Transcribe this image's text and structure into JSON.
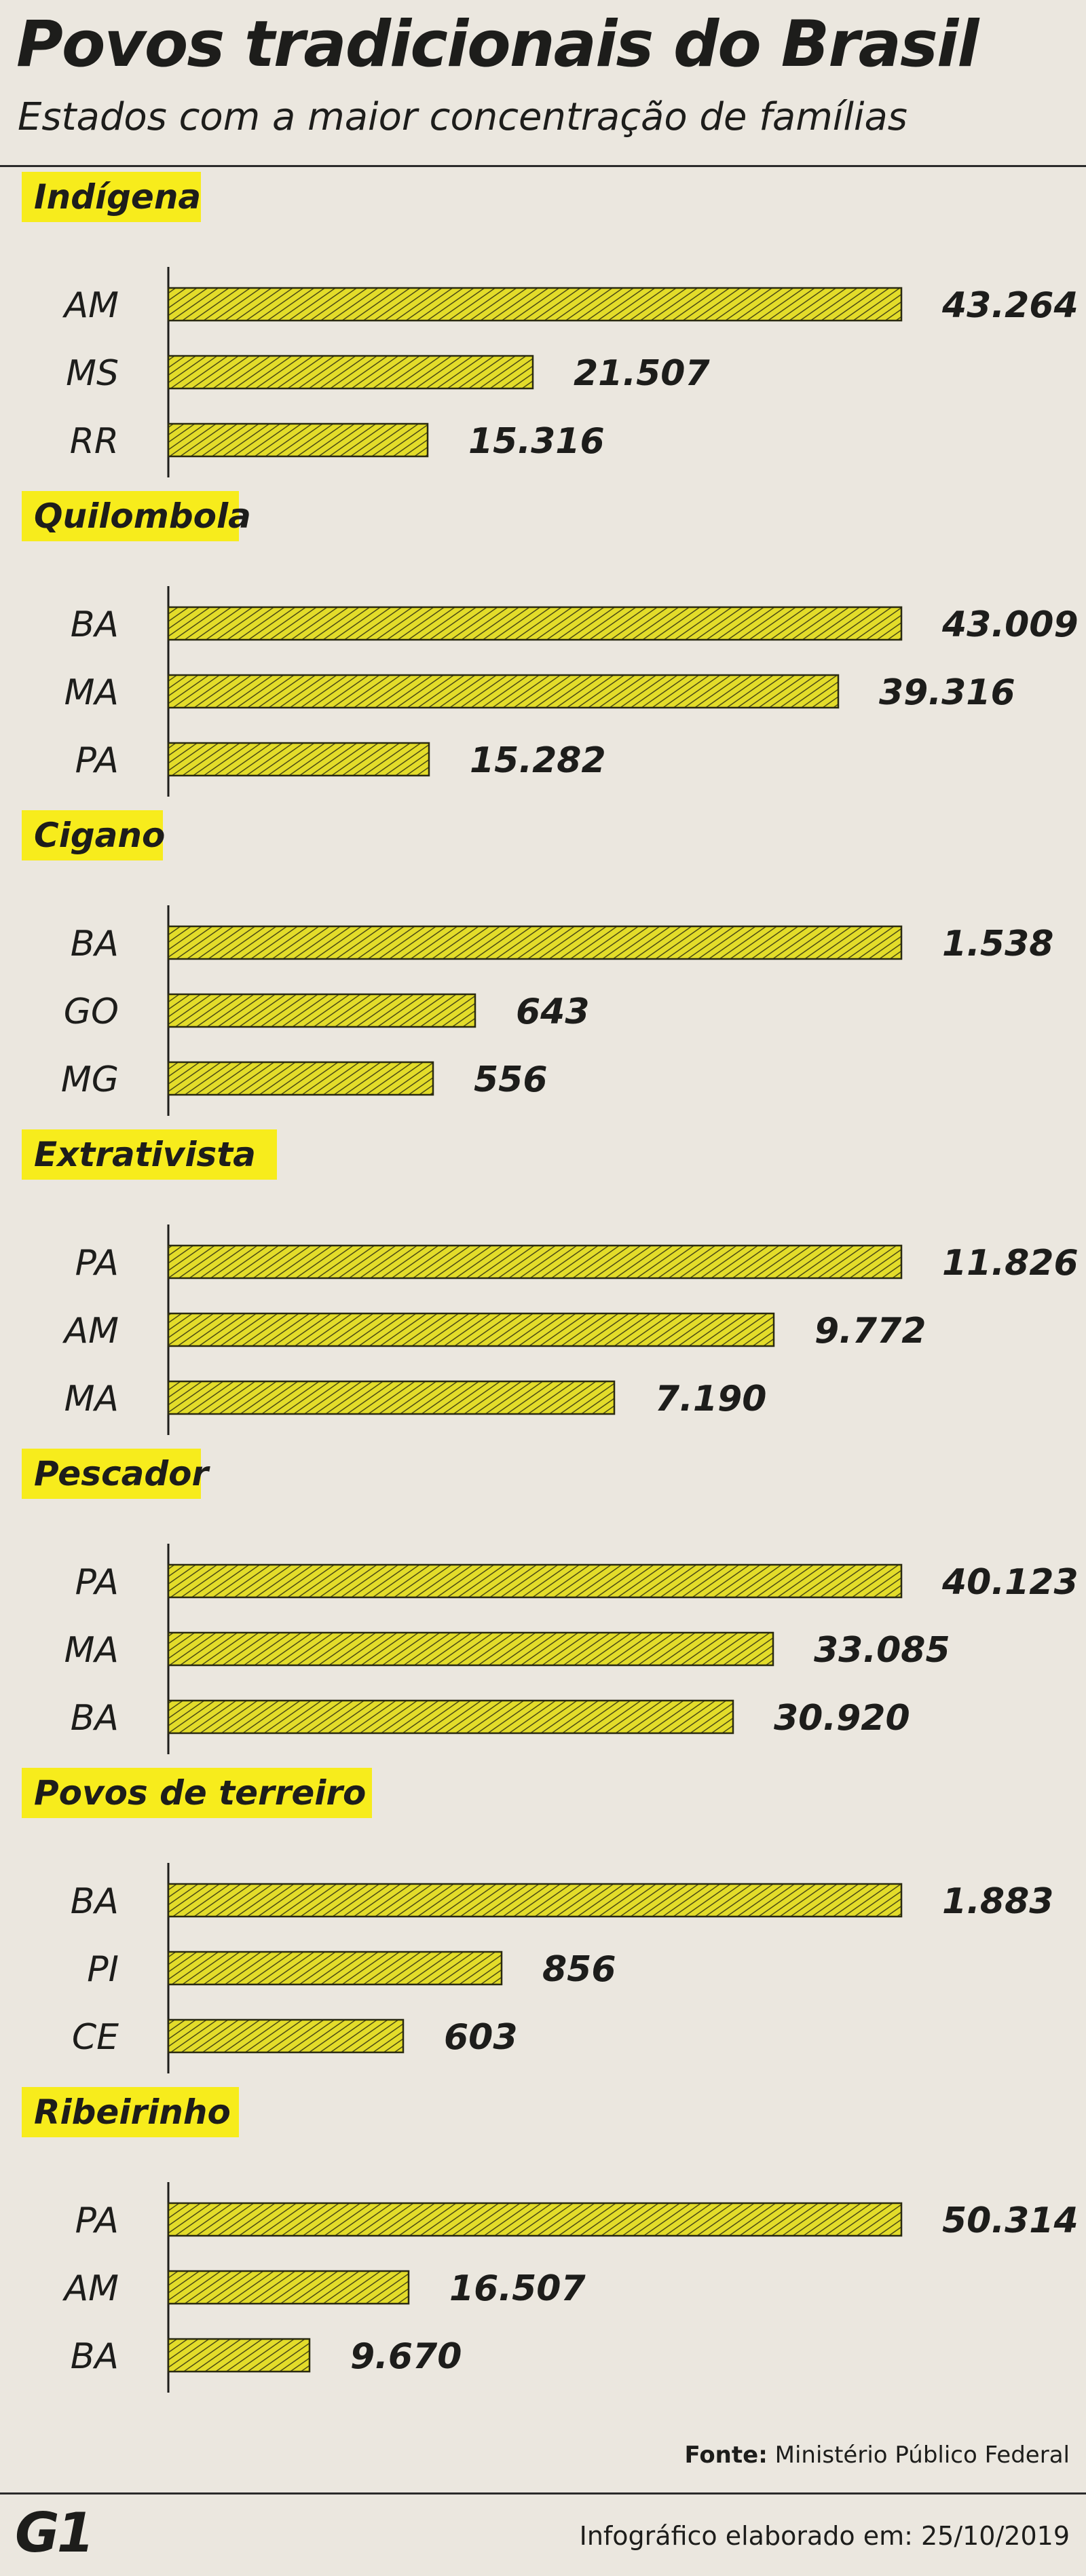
{
  "header": {
    "title": "Povos tradicionais do Brasil",
    "subtitle": "Estados com a maior concentração de famílias"
  },
  "footer": {
    "source_label": "Fonte:",
    "source_value": "Ministério Público Federal",
    "logo": "G1",
    "date_text": "Infográfico elaborado em: 25/10/2019"
  },
  "colors": {
    "background": "#ebe7df",
    "highlight": "#f7ec1c",
    "bar_fill": "#e3dc2a",
    "bar_hatch": "#4a4a16",
    "ink": "#1d1d1b"
  },
  "chart_data": [
    {
      "type": "bar",
      "title": "Indígena",
      "categories": [
        "AM",
        "MS",
        "RR"
      ],
      "values": [
        43264,
        21507,
        15316
      ],
      "labels": [
        "43.264",
        "21.507",
        "15.316"
      ]
    },
    {
      "type": "bar",
      "title": "Quilombola",
      "categories": [
        "BA",
        "MA",
        "PA"
      ],
      "values": [
        43009,
        39316,
        15282
      ],
      "labels": [
        "43.009",
        "39.316",
        "15.282"
      ]
    },
    {
      "type": "bar",
      "title": "Cigano",
      "categories": [
        "BA",
        "GO",
        "MG"
      ],
      "values": [
        1538,
        643,
        556
      ],
      "labels": [
        "1.538",
        "643",
        "556"
      ]
    },
    {
      "type": "bar",
      "title": "Extrativista",
      "categories": [
        "PA",
        "AM",
        "MA"
      ],
      "values": [
        11826,
        9772,
        7190
      ],
      "labels": [
        "11.826",
        "9.772",
        "7.190"
      ]
    },
    {
      "type": "bar",
      "title": "Pescador",
      "categories": [
        "PA",
        "MA",
        "BA"
      ],
      "values": [
        40123,
        33085,
        30920
      ],
      "labels": [
        "40.123",
        "33.085",
        "30.920"
      ]
    },
    {
      "type": "bar",
      "title": "Povos de terreiro",
      "categories": [
        "BA",
        "PI",
        "CE"
      ],
      "values": [
        1883,
        856,
        603
      ],
      "labels": [
        "1.883",
        "856",
        "603"
      ]
    },
    {
      "type": "bar",
      "title": "Ribeirinho",
      "categories": [
        "PA",
        "AM",
        "BA"
      ],
      "values": [
        50314,
        16507,
        9670
      ],
      "labels": [
        "50.314",
        "16.507",
        "9.670"
      ]
    }
  ]
}
